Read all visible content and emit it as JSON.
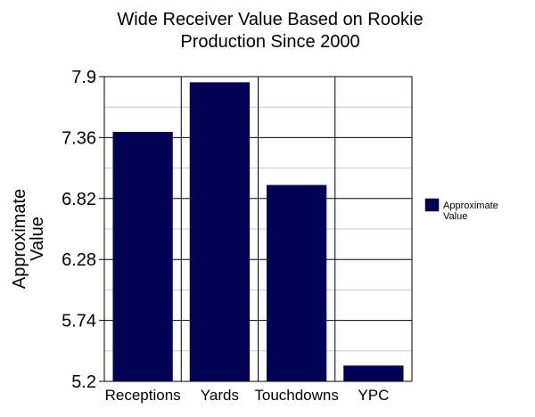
{
  "chart_data": {
    "type": "bar",
    "title_lines": [
      "Wide Receiver Value Based on Rookie",
      "Production Since 2000"
    ],
    "ylabel_lines": [
      "Approximate",
      "Value"
    ],
    "xlabel": "",
    "categories": [
      "Receptions",
      "Yards",
      "Touchdowns",
      "YPC"
    ],
    "series": [
      {
        "name_lines": [
          "Approximate",
          "Value"
        ],
        "values": [
          7.41,
          7.85,
          6.94,
          5.34
        ]
      }
    ],
    "ylim": [
      5.2,
      7.9
    ],
    "yticks": [
      "7.9",
      "7.36",
      "6.82",
      "6.28",
      "5.74",
      "5.2"
    ],
    "grid": true,
    "legend": "right",
    "colors": {
      "bar": "#000054",
      "grid": "#000000",
      "minor_grid": "#c8c8c8",
      "background": "#ffffff"
    }
  }
}
